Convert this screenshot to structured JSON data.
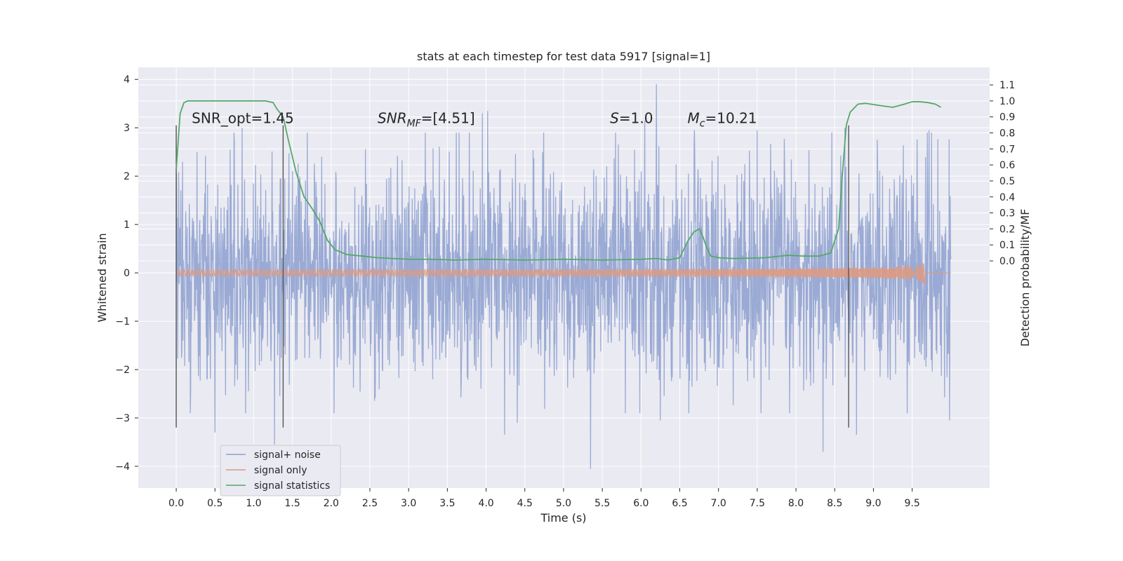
{
  "chart_data": {
    "type": "line",
    "title": "stats at each timestep for test data 5917 [signal=1]",
    "xlabel": "Time (s)",
    "ylabel": "Whitened strain",
    "ylabel_right": "Detection probability/MF",
    "xlim": [
      -0.49,
      10.5
    ],
    "ylim": [
      -4.45,
      4.25
    ],
    "ylim_right": [
      -1.42,
      1.21
    ],
    "x_ticks": [
      "0.0",
      "0.5",
      "1.0",
      "1.5",
      "2.0",
      "2.5",
      "3.0",
      "3.5",
      "4.0",
      "4.5",
      "5.0",
      "5.5",
      "6.0",
      "6.5",
      "7.0",
      "7.5",
      "8.0",
      "8.5",
      "9.0",
      "9.5"
    ],
    "y_ticks": [
      "4",
      "3",
      "2",
      "1",
      "0",
      "−1",
      "−2",
      "−3",
      "−4"
    ],
    "y_ticks_right": [
      "1.1",
      "1.0",
      "0.9",
      "0.8",
      "0.7",
      "0.6",
      "0.5",
      "0.4",
      "0.3",
      "0.2",
      "0.1",
      "0.0"
    ],
    "grid": true,
    "annotations": [
      {
        "text": "SNR_opt=1.45",
        "x": 0.2,
        "y": 3.1
      },
      {
        "text": "SNR",
        "sub": "MF",
        "suffix": "=[4.51]",
        "italic_prefix": true,
        "x": 2.6,
        "y": 3.1
      },
      {
        "text": "S",
        "suffix": "=1.0",
        "italic_prefix": true,
        "x": 5.6,
        "y": 3.1
      },
      {
        "text": "M",
        "sub": "c",
        "suffix": "=10.21",
        "italic_prefix": true,
        "x": 6.6,
        "y": 3.1
      }
    ],
    "vlines": [
      0.0,
      1.38,
      8.68
    ],
    "vline_ranges": [
      [
        -3.2,
        3.05
      ],
      [
        -3.2,
        3.05
      ],
      [
        -3.2,
        3.05
      ]
    ],
    "series": [
      {
        "name": "signal+ noise",
        "color": "#8c9fcf",
        "kind": "noise",
        "x_range": [
          0.0,
          10.0
        ],
        "spread": 1.1,
        "extremes": [
          [
            0.85,
            3.0
          ],
          [
            0.27,
            2.5
          ],
          [
            0.5,
            -3.3
          ],
          [
            1.27,
            -3.55
          ],
          [
            3.65,
            2.9
          ],
          [
            3.95,
            3.3
          ],
          [
            4.02,
            3.35
          ],
          [
            4.4,
            -3.1
          ],
          [
            4.24,
            -3.35
          ],
          [
            5.35,
            -4.05
          ],
          [
            6.05,
            3.15
          ],
          [
            6.2,
            3.9
          ],
          [
            6.25,
            -3.05
          ],
          [
            6.69,
            2.95
          ],
          [
            7.5,
            2.95
          ],
          [
            7.55,
            -2.9
          ],
          [
            8.35,
            -3.7
          ],
          [
            8.63,
            3.0
          ],
          [
            8.78,
            -3.35
          ],
          [
            9.72,
            2.95
          ],
          [
            9.98,
            -3.05
          ]
        ]
      },
      {
        "name": "signal only",
        "color": "#dd9a83",
        "kind": "chirp",
        "x_range": [
          0.0,
          10.0
        ],
        "merge_time": 9.67,
        "peak_amp": 0.25
      },
      {
        "name": "signal statistics",
        "color": "#55a868",
        "kind": "curve",
        "axis": "right",
        "x": [
          0.0,
          0.05,
          0.1,
          0.15,
          0.25,
          0.4,
          0.6,
          0.8,
          1.0,
          1.15,
          1.25,
          1.3,
          1.38,
          1.45,
          1.55,
          1.65,
          1.75,
          1.85,
          1.95,
          2.05,
          2.2,
          2.4,
          2.6,
          2.8,
          3.0,
          3.3,
          3.6,
          4.0,
          4.5,
          5.0,
          5.5,
          6.0,
          6.2,
          6.35,
          6.5,
          6.6,
          6.68,
          6.75,
          6.8,
          6.85,
          6.9,
          7.0,
          7.2,
          7.6,
          7.9,
          8.1,
          8.3,
          8.45,
          8.55,
          8.6,
          8.65,
          8.7,
          8.8,
          8.9,
          9.1,
          9.25,
          9.4,
          9.5,
          9.6,
          9.7,
          9.8,
          9.87
        ],
        "values": [
          0.57,
          0.92,
          0.99,
          1.0,
          1.0,
          1.0,
          1.0,
          1.0,
          1.0,
          1.0,
          0.99,
          0.95,
          0.9,
          0.75,
          0.55,
          0.4,
          0.33,
          0.25,
          0.13,
          0.07,
          0.04,
          0.03,
          0.02,
          0.015,
          0.01,
          0.01,
          0.005,
          0.01,
          0.005,
          0.01,
          0.005,
          0.01,
          0.015,
          0.005,
          0.02,
          0.12,
          0.18,
          0.2,
          0.15,
          0.08,
          0.03,
          0.02,
          0.015,
          0.02,
          0.035,
          0.03,
          0.03,
          0.05,
          0.2,
          0.55,
          0.85,
          0.93,
          0.98,
          0.985,
          0.97,
          0.96,
          0.98,
          0.995,
          0.995,
          0.99,
          0.98,
          0.96
        ]
      }
    ],
    "legend": {
      "placement": "lower-left"
    }
  }
}
